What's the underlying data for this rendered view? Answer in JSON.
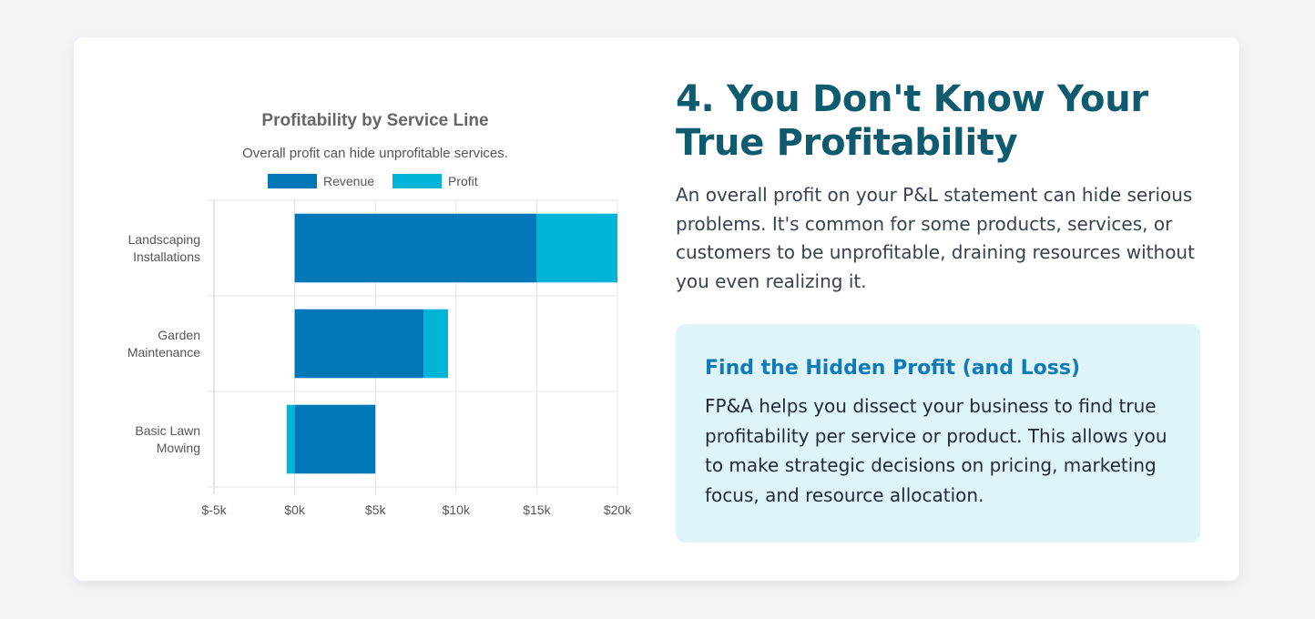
{
  "chart_data": {
    "type": "bar",
    "orientation": "horizontal",
    "stacked": true,
    "title": "Profitability by Service Line",
    "subtitle": "Overall profit can hide unprofitable services.",
    "categories": [
      "Landscaping Installations",
      "Garden Maintenance",
      "Basic Lawn Mowing"
    ],
    "category_lines": [
      [
        "Landscaping",
        "Installations"
      ],
      [
        "Garden",
        "Maintenance"
      ],
      [
        "Basic Lawn",
        "Mowing"
      ]
    ],
    "series": [
      {
        "name": "Revenue",
        "values": [
          15000,
          8000,
          5000
        ],
        "color": "#0077b6"
      },
      {
        "name": "Profit",
        "values": [
          5000,
          1500,
          -500
        ],
        "color": "#00b4d8"
      }
    ],
    "xlim": [
      -5000,
      20000
    ],
    "x_ticks": [
      -5000,
      0,
      5000,
      10000,
      15000,
      20000
    ],
    "x_tick_labels": [
      "$-5k",
      "$0k",
      "$5k",
      "$10k",
      "$15k",
      "$20k"
    ],
    "legend": "top",
    "grid": true
  },
  "content": {
    "heading": "4. You Don't Know Your True Profitability",
    "intro": "An overall profit on your P&L statement can hide serious problems. It's common for some products, services, or customers to be unprofitable, draining resources without you even realizing it.",
    "callout": {
      "title": "Find the Hidden Profit (and Loss)",
      "body": "FP&A helps you dissect your business to find true profitability per service or product. This allows you to make strategic decisions on pricing, marketing focus, and resource allocation."
    }
  }
}
